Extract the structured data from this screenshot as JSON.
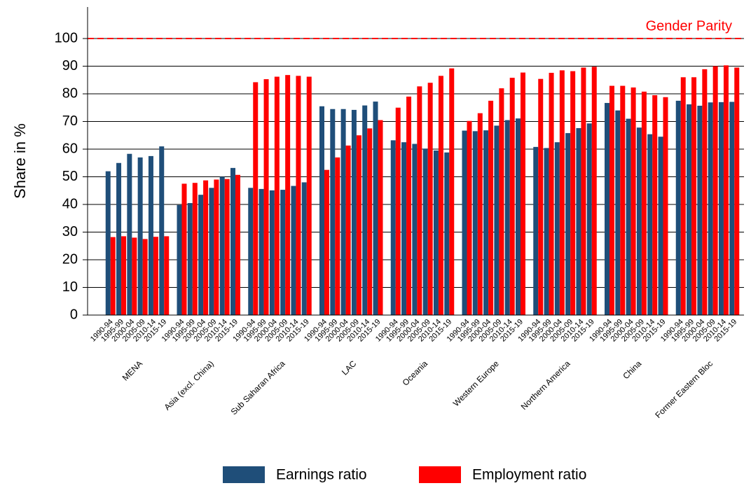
{
  "chart_data": {
    "type": "grouped-bar",
    "y_label": "Share in %",
    "groups": [
      "MENA",
      "Asia (excl. China)",
      "Sub Saharan Africa",
      "LAC",
      "Oceania",
      "Western Europe",
      "Northern America",
      "China",
      "Former Eastern Bloc"
    ],
    "periods": [
      "1990-94",
      "1995-99",
      "2000-04",
      "2005-09",
      "2010-14",
      "2015-19"
    ],
    "series": [
      {
        "name": "Earnings ratio",
        "color": "#1f4e79",
        "values": [
          52,
          55,
          58.3,
          57,
          57.5,
          61,
          39.8,
          40.5,
          43.5,
          46,
          50,
          53.2,
          46,
          45.6,
          45.1,
          45.3,
          46.7,
          48,
          75.5,
          74.5,
          74.5,
          74.2,
          75.8,
          77.2,
          63.2,
          62.5,
          61.9,
          60.2,
          59.5,
          58.8,
          66.7,
          66.5,
          66.8,
          68.5,
          70.5,
          71.1,
          60.8,
          60.4,
          62.5,
          65.8,
          67.6,
          69.3,
          76.7,
          74,
          71,
          67.8,
          65.4,
          64.5,
          77.5,
          76.2,
          75.7,
          76.9,
          77,
          77.1
        ]
      },
      {
        "name": "Employment ratio",
        "color": "#ff0000",
        "values": [
          28.2,
          28.5,
          28,
          27.5,
          28.3,
          28.5,
          47.5,
          47.8,
          48.7,
          49,
          49.2,
          50.7,
          84.2,
          85.3,
          86.2,
          86.8,
          86.5,
          86.2,
          52.5,
          57,
          61.3,
          65,
          67.5,
          70.5,
          75,
          79,
          82.7,
          84,
          86.5,
          89.2,
          70.2,
          73,
          77.5,
          82,
          85.8,
          87.7,
          85.4,
          87.6,
          88.5,
          88.2,
          89.5,
          89.8,
          82.9,
          82.9,
          82.3,
          80.8,
          79.5,
          78.8,
          86,
          86,
          88.9,
          90,
          90.3,
          89.5
        ]
      }
    ],
    "ylim": [
      0,
      111.4
    ],
    "yticks": [
      0,
      10,
      20,
      30,
      40,
      50,
      60,
      70,
      80,
      90,
      100
    ],
    "grid": true,
    "reference_line": {
      "value": 100,
      "label": "Gender Parity",
      "color": "#ff0000"
    }
  }
}
